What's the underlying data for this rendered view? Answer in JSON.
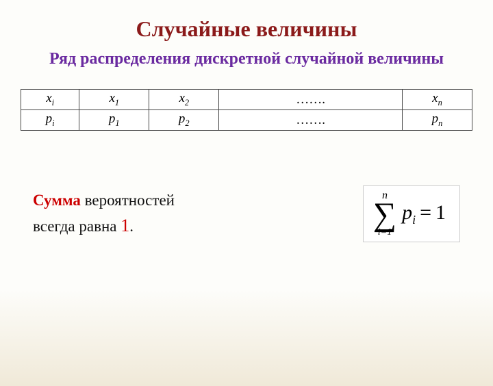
{
  "title": "Случайные величины",
  "subtitle": "Ряд распределения дискретной случайной величины",
  "title_color": "#8b1a1a",
  "subtitle_color": "#6a2aa0",
  "table": {
    "rows": [
      {
        "header_var": "x",
        "header_sub": "i",
        "c1_var": "x",
        "c1_sub": "1",
        "c2_var": "x",
        "c2_sub": "2",
        "dots": "…….",
        "cn_var": "x",
        "cn_sub": "n"
      },
      {
        "header_var": "p",
        "header_sub": "i",
        "c1_var": "p",
        "c1_sub": "1",
        "c2_var": "p",
        "c2_sub": "2",
        "dots": "…….",
        "cn_var": "p",
        "cn_sub": "n"
      }
    ],
    "border_color": "#444444",
    "background_color": "#ffffff",
    "cell_fontsize": 19
  },
  "sum_text": {
    "word_red": "Сумма",
    "word_rest1": " вероятностей",
    "line2_pre": "всегда равна ",
    "one": "1",
    "dot": ".",
    "red_color": "#cc0000",
    "fontsize": 23
  },
  "formula": {
    "sigma_top": "n",
    "sigma_bottom": "i=1",
    "body_var": "p",
    "body_sub": "i",
    "equals": "=",
    "rhs": "1",
    "sigma_fontsize": 48,
    "body_fontsize": 30,
    "box_border": "#cccccc",
    "box_bg": "#ffffff"
  },
  "background_gradient": {
    "top": "#fdfdfa",
    "bottom": "#f0e9d8"
  }
}
